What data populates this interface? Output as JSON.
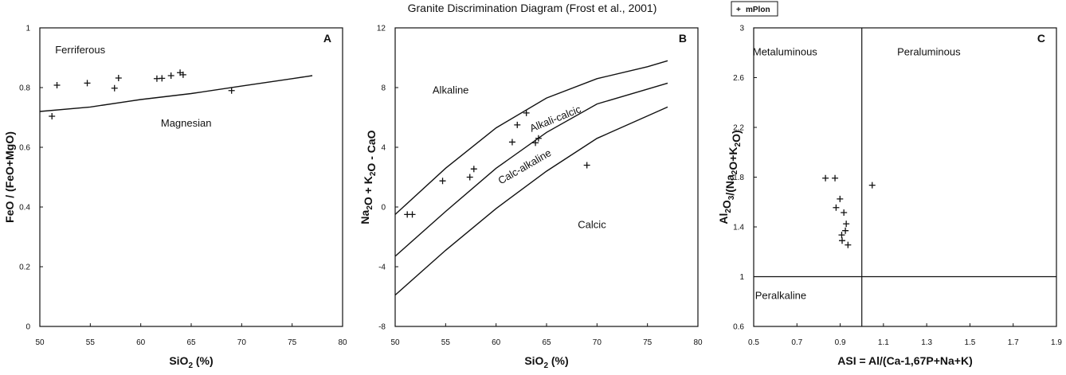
{
  "title": "Granite Discrimination Diagram (Frost et al., 2001)",
  "legend": {
    "marker": "+",
    "label": "mPlon"
  },
  "chart_data": [
    {
      "id": "A",
      "type": "scatter",
      "panel_label": "A",
      "xlabel": {
        "main": "SiO",
        "sub": "2",
        "tail": " (%)"
      },
      "ylabel": "FeO / (FeO+MgO)",
      "xlim": [
        50,
        80
      ],
      "ylim": [
        0,
        1
      ],
      "xticks": [
        "50",
        "55",
        "60",
        "65",
        "70",
        "75",
        "80"
      ],
      "xtick_values": [
        50,
        55,
        60,
        65,
        70,
        75,
        80
      ],
      "yticks": [
        "0",
        "0.2",
        "0.4",
        "0.6",
        "0.8",
        "1"
      ],
      "ytick_values": [
        0,
        0.2,
        0.4,
        0.6,
        0.8,
        1
      ],
      "boundaries": [
        {
          "points": [
            [
              50,
              0.72
            ],
            [
              55,
              0.735
            ],
            [
              60,
              0.76
            ],
            [
              65,
              0.78
            ],
            [
              70,
              0.805
            ],
            [
              75,
              0.83
            ],
            [
              77,
              0.84
            ]
          ]
        }
      ],
      "annotations": [
        {
          "text": "Ferriferous",
          "x": 54,
          "y": 0.915
        },
        {
          "text": "Magnesian",
          "x": 64.5,
          "y": 0.67
        }
      ],
      "points": [
        [
          51.2,
          0.704
        ],
        [
          51.7,
          0.808
        ],
        [
          54.7,
          0.815
        ],
        [
          57.4,
          0.798
        ],
        [
          57.8,
          0.832
        ],
        [
          61.6,
          0.83
        ],
        [
          62.1,
          0.831
        ],
        [
          63.0,
          0.84
        ],
        [
          63.9,
          0.85
        ],
        [
          64.2,
          0.843
        ],
        [
          69.0,
          0.79
        ]
      ]
    },
    {
      "id": "B",
      "type": "scatter",
      "panel_label": "B",
      "xlabel": {
        "main": "SiO",
        "sub": "2",
        "tail": " (%)"
      },
      "ylabel": "Na2O + K2O - CaO",
      "xlim": [
        50,
        80
      ],
      "ylim": [
        -8,
        12
      ],
      "xticks": [
        "50",
        "55",
        "60",
        "65",
        "70",
        "75",
        "80"
      ],
      "xtick_values": [
        50,
        55,
        60,
        65,
        70,
        75,
        80
      ],
      "yticks": [
        "-8",
        "-4",
        "0",
        "4",
        "8",
        "12"
      ],
      "ytick_values": [
        -8,
        -4,
        0,
        4,
        8,
        12
      ],
      "boundaries": [
        {
          "points": [
            [
              50,
              -0.5
            ],
            [
              55,
              2.6
            ],
            [
              60,
              5.3
            ],
            [
              65,
              7.3
            ],
            [
              70,
              8.6
            ],
            [
              75,
              9.4
            ],
            [
              77,
              9.8
            ]
          ]
        },
        {
          "points": [
            [
              50,
              -3.3
            ],
            [
              55,
              -0.3
            ],
            [
              60,
              2.6
            ],
            [
              65,
              5.0
            ],
            [
              70,
              6.9
            ],
            [
              75,
              7.9
            ],
            [
              77,
              8.3
            ]
          ]
        },
        {
          "points": [
            [
              50,
              -5.9
            ],
            [
              55,
              -2.9
            ],
            [
              60,
              -0.1
            ],
            [
              65,
              2.4
            ],
            [
              70,
              4.6
            ],
            [
              75,
              6.1
            ],
            [
              77,
              6.7
            ]
          ]
        }
      ],
      "annotations": [
        {
          "text": "Alkaline",
          "x": 55.5,
          "y": 7.6,
          "rotate": 0
        },
        {
          "text": "Alkali-calcic",
          "x": 66.0,
          "y": 5.7,
          "rotate": -22
        },
        {
          "text": "Calc-alkaline",
          "x": 63.0,
          "y": 2.5,
          "rotate": -30
        },
        {
          "text": "Calcic",
          "x": 69.5,
          "y": -1.4,
          "rotate": 0
        }
      ],
      "points": [
        [
          51.2,
          -0.5
        ],
        [
          51.7,
          -0.5
        ],
        [
          54.7,
          1.75
        ],
        [
          57.4,
          2.0
        ],
        [
          57.8,
          2.55
        ],
        [
          61.6,
          4.35
        ],
        [
          62.1,
          5.5
        ],
        [
          63.0,
          6.3
        ],
        [
          63.9,
          4.3
        ],
        [
          64.2,
          4.6
        ],
        [
          69.0,
          2.8
        ]
      ]
    },
    {
      "id": "C",
      "type": "scatter",
      "panel_label": "C",
      "xlabel": {
        "main": "ASI = Al/(Ca-1,67P+Na+K)",
        "sub": "",
        "tail": ""
      },
      "ylabel": "Al2O3/(Na2O+K2O)",
      "xlim": [
        0.5,
        1.9
      ],
      "ylim": [
        0.6,
        3
      ],
      "xticks": [
        "0.5",
        "0.7",
        "0.9",
        "1.1",
        "1.3",
        "1.5",
        "1.7",
        "1.9"
      ],
      "xtick_values": [
        0.5,
        0.7,
        0.9,
        1.1,
        1.3,
        1.5,
        1.7,
        1.9
      ],
      "yticks": [
        "0.6",
        "1",
        "1.4",
        "1.8",
        "2.2",
        "2.6",
        "3"
      ],
      "ytick_values": [
        0.6,
        1.0,
        1.4,
        1.8,
        2.2,
        2.6,
        3.0
      ],
      "divider_x": 1.0,
      "divider_y": 1.0,
      "annotations": [
        {
          "text": "Metaluminous",
          "x": 0.645,
          "y": 2.78
        },
        {
          "text": "Peraluminous",
          "x": 1.31,
          "y": 2.78
        },
        {
          "text": "Peralkaline",
          "x": 0.625,
          "y": 0.82
        }
      ],
      "points": [
        [
          0.832,
          1.792
        ],
        [
          0.876,
          1.792
        ],
        [
          0.899,
          1.625
        ],
        [
          0.881,
          1.555
        ],
        [
          0.917,
          1.515
        ],
        [
          0.928,
          1.425
        ],
        [
          0.907,
          1.335
        ],
        [
          0.924,
          1.37
        ],
        [
          0.909,
          1.29
        ],
        [
          0.936,
          1.255
        ],
        [
          1.048,
          1.735
        ]
      ]
    }
  ]
}
